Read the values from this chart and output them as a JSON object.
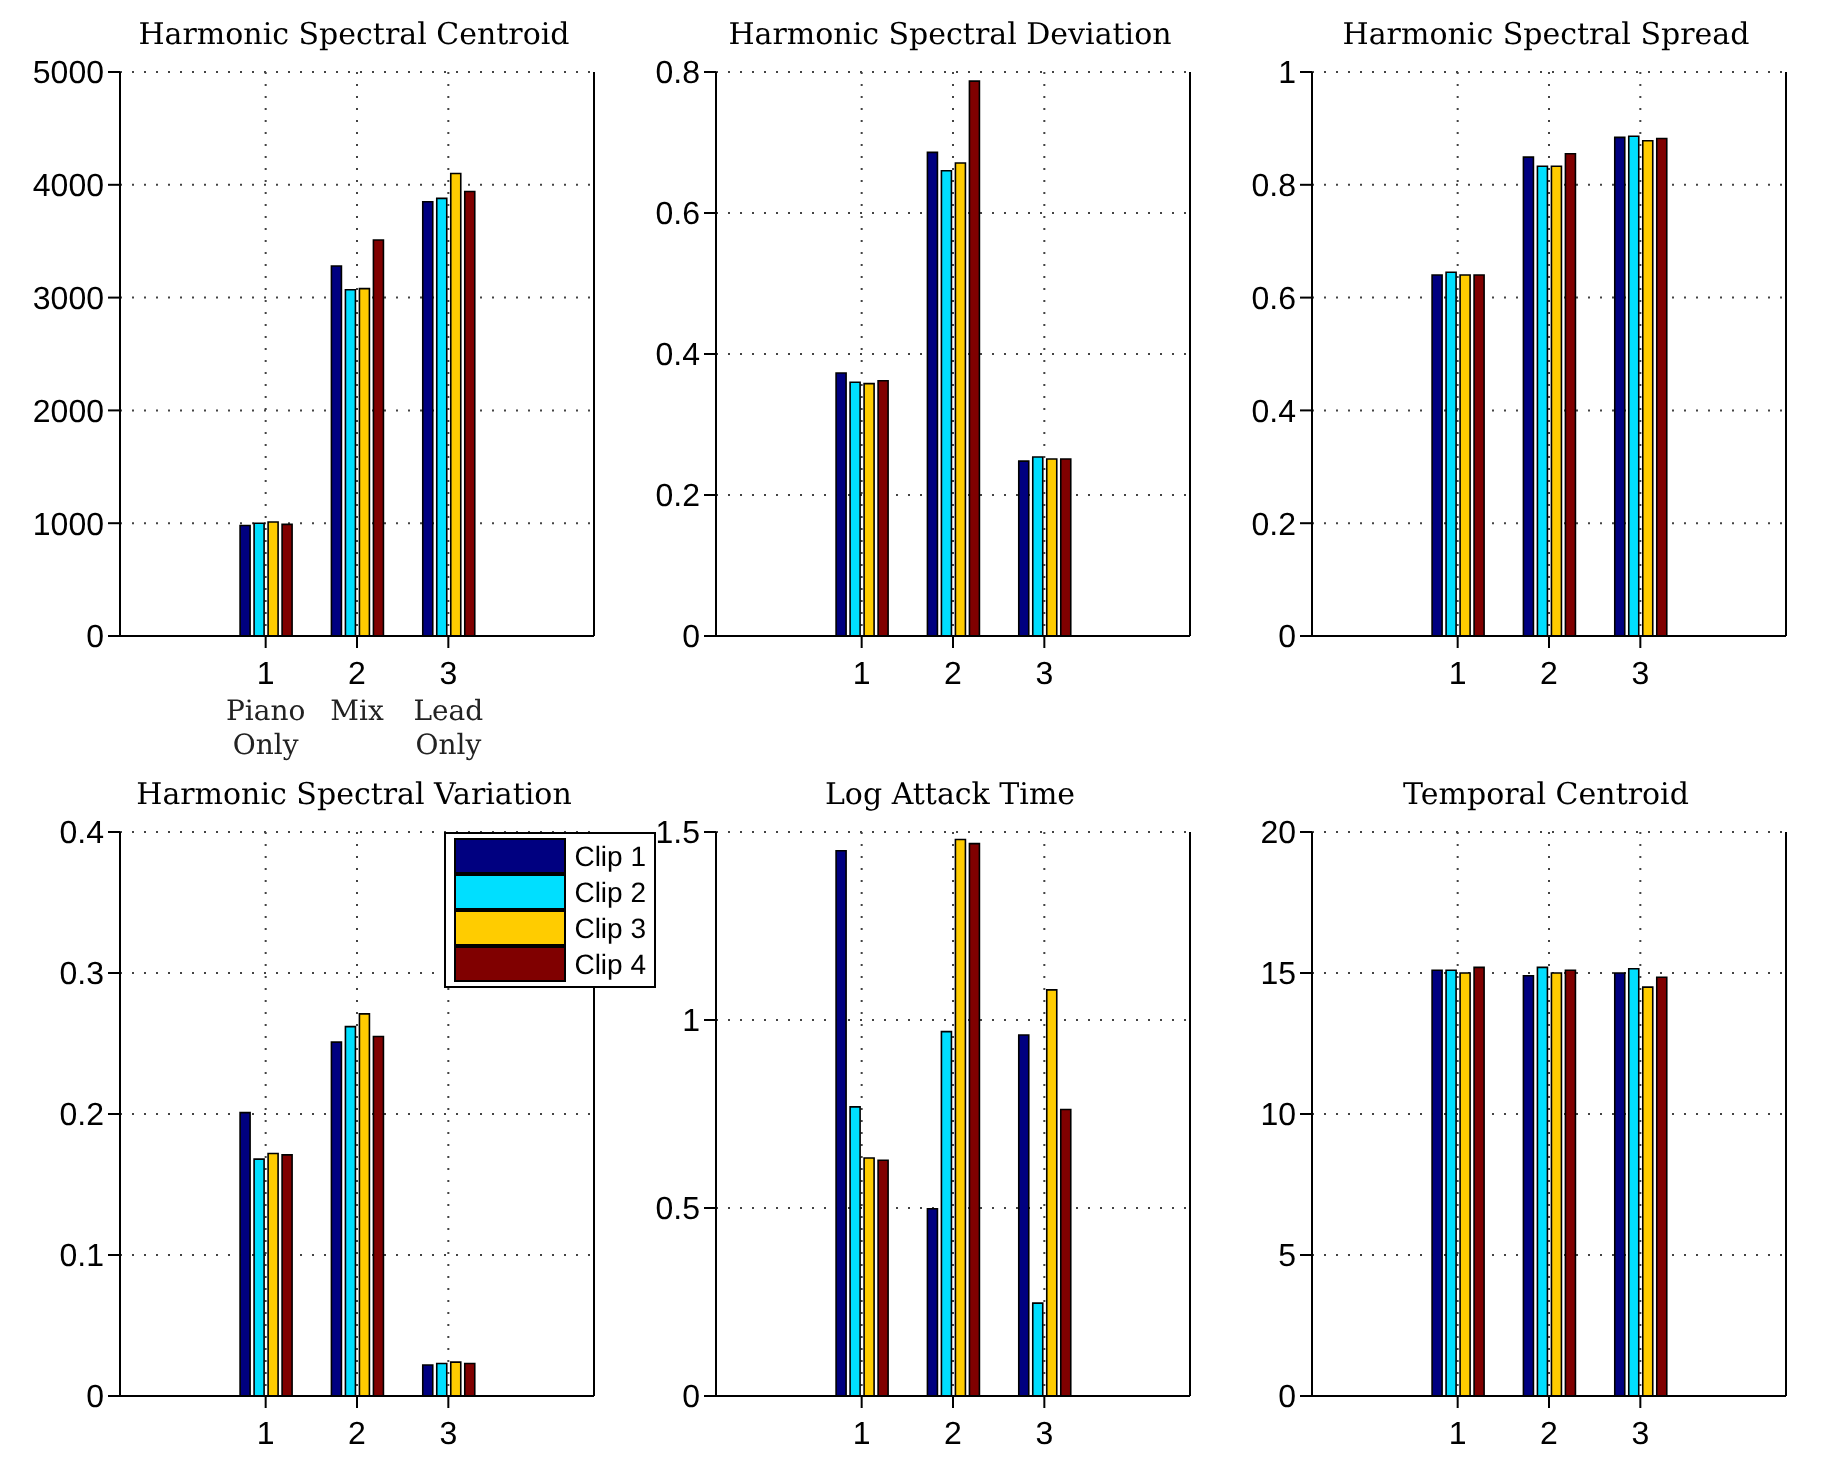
{
  "chart_data": [
    {
      "type": "bar",
      "title": "Harmonic Spectral Centroid",
      "categories": [
        "1",
        "2",
        "3"
      ],
      "ylim": [
        0,
        5000
      ],
      "yticks": [
        0,
        1000,
        2000,
        3000,
        4000,
        5000
      ],
      "grid": true,
      "annotations": [
        "Piano Only",
        "Mix",
        "Lead Only"
      ],
      "series": [
        {
          "color": "#000080",
          "values": [
            980,
            3280,
            3850
          ]
        },
        {
          "color": "#00dfff",
          "values": [
            1000,
            3070,
            3880
          ]
        },
        {
          "color": "#ffcc00",
          "values": [
            1010,
            3080,
            4100
          ]
        },
        {
          "color": "#800000",
          "values": [
            990,
            3510,
            3940
          ]
        }
      ]
    },
    {
      "type": "bar",
      "title": "Harmonic Spectral Deviation",
      "categories": [
        "1",
        "2",
        "3"
      ],
      "ylim": [
        0,
        0.8
      ],
      "yticks": [
        0,
        0.2,
        0.4,
        0.6,
        0.8
      ],
      "grid": true,
      "series": [
        {
          "color": "#000080",
          "values": [
            0.373,
            0.686,
            0.248
          ]
        },
        {
          "color": "#00dfff",
          "values": [
            0.36,
            0.66,
            0.254
          ]
        },
        {
          "color": "#ffcc00",
          "values": [
            0.358,
            0.671,
            0.251
          ]
        },
        {
          "color": "#800000",
          "values": [
            0.362,
            0.787,
            0.251
          ]
        }
      ]
    },
    {
      "type": "bar",
      "title": "Harmonic Spectral Spread",
      "categories": [
        "1",
        "2",
        "3"
      ],
      "ylim": [
        0,
        1
      ],
      "yticks": [
        0,
        0.2,
        0.4,
        0.6,
        0.8,
        1
      ],
      "grid": true,
      "series": [
        {
          "color": "#000080",
          "values": [
            0.64,
            0.849,
            0.884
          ]
        },
        {
          "color": "#00dfff",
          "values": [
            0.645,
            0.833,
            0.886
          ]
        },
        {
          "color": "#ffcc00",
          "values": [
            0.64,
            0.833,
            0.878
          ]
        },
        {
          "color": "#800000",
          "values": [
            0.64,
            0.855,
            0.882
          ]
        }
      ]
    },
    {
      "type": "bar",
      "title": "Harmonic Spectral Variation",
      "categories": [
        "1",
        "2",
        "3"
      ],
      "ylim": [
        0,
        0.4
      ],
      "yticks": [
        0,
        0.1,
        0.2,
        0.3,
        0.4
      ],
      "grid": true,
      "legend": "top right",
      "series": [
        {
          "name": "Clip 1",
          "color": "#000080",
          "values": [
            0.201,
            0.251,
            0.022
          ]
        },
        {
          "name": "Clip 2",
          "color": "#00dfff",
          "values": [
            0.168,
            0.262,
            0.023
          ]
        },
        {
          "name": "Clip 3",
          "color": "#ffcc00",
          "values": [
            0.172,
            0.271,
            0.024
          ]
        },
        {
          "name": "Clip 4",
          "color": "#800000",
          "values": [
            0.171,
            0.255,
            0.023
          ]
        }
      ]
    },
    {
      "type": "bar",
      "title": "Log Attack Time",
      "categories": [
        "1",
        "2",
        "3"
      ],
      "ylim": [
        0,
        1.5
      ],
      "yticks": [
        0,
        0.5,
        1,
        1.5
      ],
      "grid": true,
      "series": [
        {
          "color": "#000080",
          "values": [
            1.45,
            0.498,
            0.96
          ]
        },
        {
          "color": "#00dfff",
          "values": [
            0.769,
            0.969,
            0.247
          ]
        },
        {
          "color": "#ffcc00",
          "values": [
            0.633,
            1.48,
            1.08
          ]
        },
        {
          "color": "#800000",
          "values": [
            0.627,
            1.469,
            0.762
          ]
        }
      ]
    },
    {
      "type": "bar",
      "title": "Temporal Centroid",
      "categories": [
        "1",
        "2",
        "3"
      ],
      "ylim": [
        0,
        20
      ],
      "yticks": [
        0,
        5,
        10,
        15,
        20
      ],
      "grid": true,
      "series": [
        {
          "color": "#000080",
          "values": [
            15.1,
            14.9,
            15.0
          ]
        },
        {
          "color": "#00dfff",
          "values": [
            15.1,
            15.2,
            15.15
          ]
        },
        {
          "color": "#ffcc00",
          "values": [
            15.0,
            15.0,
            14.5
          ]
        },
        {
          "color": "#800000",
          "values": [
            15.2,
            15.1,
            14.85
          ]
        }
      ]
    }
  ]
}
